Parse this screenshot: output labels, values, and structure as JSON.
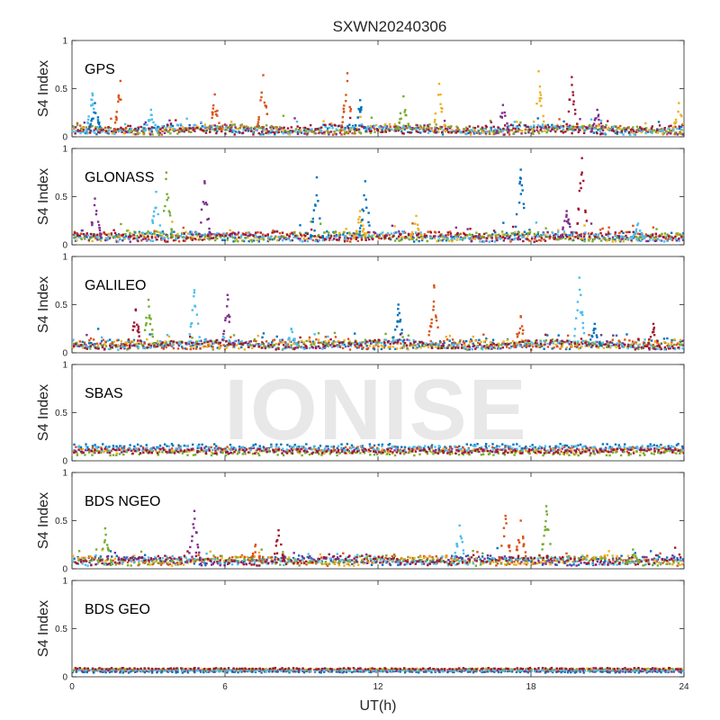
{
  "chart_data": {
    "type": "scatter",
    "title": "SXWN20240306",
    "xlabel": "UT(h)",
    "ylabel": "S4 Index",
    "xlim": [
      0,
      24
    ],
    "ylim": [
      0,
      1
    ],
    "xticks": [
      "0",
      "6",
      "12",
      "18",
      "24"
    ],
    "yticks": [
      "0",
      "0.5",
      "1"
    ],
    "watermark": "IONISE",
    "series_colors": [
      "#0072BD",
      "#D95319",
      "#EDB120",
      "#7E2F8E",
      "#77AC30",
      "#4DBEEE",
      "#A2142F"
    ],
    "panels": [
      {
        "name": "GPS",
        "baseline": 0.05,
        "spikes": [
          {
            "t": 0.8,
            "v": 0.45,
            "c": 5
          },
          {
            "t": 0.9,
            "v": 0.35,
            "c": 0
          },
          {
            "t": 1.9,
            "v": 0.58,
            "c": 1
          },
          {
            "t": 3.1,
            "v": 0.28,
            "c": 5
          },
          {
            "t": 5.6,
            "v": 0.44,
            "c": 1
          },
          {
            "t": 7.5,
            "v": 0.64,
            "c": 1
          },
          {
            "t": 10.8,
            "v": 0.66,
            "c": 1
          },
          {
            "t": 11.3,
            "v": 0.38,
            "c": 0
          },
          {
            "t": 13.0,
            "v": 0.42,
            "c": 4
          },
          {
            "t": 14.4,
            "v": 0.55,
            "c": 2
          },
          {
            "t": 16.9,
            "v": 0.33,
            "c": 3
          },
          {
            "t": 18.3,
            "v": 0.68,
            "c": 2
          },
          {
            "t": 19.6,
            "v": 0.62,
            "c": 6
          },
          {
            "t": 20.6,
            "v": 0.28,
            "c": 3
          },
          {
            "t": 23.8,
            "v": 0.35,
            "c": 2
          }
        ]
      },
      {
        "name": "GLONASS",
        "baseline": 0.06,
        "spikes": [
          {
            "t": 0.9,
            "v": 0.48,
            "c": 3
          },
          {
            "t": 3.7,
            "v": 0.75,
            "c": 4
          },
          {
            "t": 3.3,
            "v": 0.55,
            "c": 5
          },
          {
            "t": 5.2,
            "v": 0.66,
            "c": 3
          },
          {
            "t": 9.6,
            "v": 0.7,
            "c": 0
          },
          {
            "t": 11.5,
            "v": 0.66,
            "c": 0
          },
          {
            "t": 11.3,
            "v": 0.35,
            "c": 2
          },
          {
            "t": 13.5,
            "v": 0.3,
            "c": 2
          },
          {
            "t": 17.6,
            "v": 0.78,
            "c": 0
          },
          {
            "t": 20.0,
            "v": 0.9,
            "c": 6
          },
          {
            "t": 19.4,
            "v": 0.35,
            "c": 3
          },
          {
            "t": 22.2,
            "v": 0.22,
            "c": 5
          }
        ]
      },
      {
        "name": "GALILEO",
        "baseline": 0.06,
        "spikes": [
          {
            "t": 2.5,
            "v": 0.45,
            "c": 6
          },
          {
            "t": 3.0,
            "v": 0.55,
            "c": 4
          },
          {
            "t": 4.8,
            "v": 0.65,
            "c": 5
          },
          {
            "t": 6.1,
            "v": 0.6,
            "c": 3
          },
          {
            "t": 8.6,
            "v": 0.25,
            "c": 5
          },
          {
            "t": 12.8,
            "v": 0.5,
            "c": 0
          },
          {
            "t": 14.2,
            "v": 0.7,
            "c": 1
          },
          {
            "t": 17.6,
            "v": 0.38,
            "c": 1
          },
          {
            "t": 19.9,
            "v": 0.78,
            "c": 5
          },
          {
            "t": 22.8,
            "v": 0.3,
            "c": 6
          },
          {
            "t": 20.5,
            "v": 0.3,
            "c": 0
          }
        ]
      },
      {
        "name": "SBAS",
        "baseline": 0.12,
        "spikes": []
      },
      {
        "name": "BDS NGEO",
        "baseline": 0.06,
        "spikes": [
          {
            "t": 1.3,
            "v": 0.42,
            "c": 4
          },
          {
            "t": 4.8,
            "v": 0.6,
            "c": 3
          },
          {
            "t": 7.2,
            "v": 0.25,
            "c": 1
          },
          {
            "t": 8.1,
            "v": 0.4,
            "c": 6
          },
          {
            "t": 15.2,
            "v": 0.45,
            "c": 5
          },
          {
            "t": 17.0,
            "v": 0.55,
            "c": 1
          },
          {
            "t": 17.6,
            "v": 0.5,
            "c": 1
          },
          {
            "t": 18.6,
            "v": 0.65,
            "c": 4
          },
          {
            "t": 22.0,
            "v": 0.2,
            "c": 4
          }
        ]
      },
      {
        "name": "BDS GEO",
        "baseline": 0.07,
        "spikes": []
      }
    ]
  }
}
